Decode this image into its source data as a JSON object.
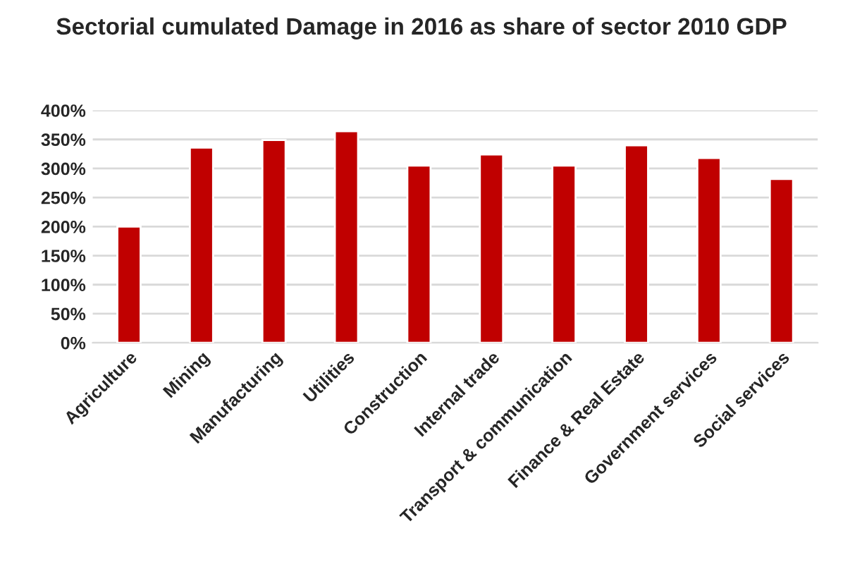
{
  "chart_data": {
    "type": "bar",
    "title": "Sectorial cumulated Damage in 2016 as share of sector 2010 GDP",
    "categories": [
      "Agriculture",
      "Mining",
      "Manufacturing",
      "Utilities",
      "Construction",
      "Internal trade",
      "Transport & communication",
      "Finance & Real Estate",
      "Government services",
      "Social services"
    ],
    "values": [
      200,
      336,
      349,
      364,
      305,
      324,
      305,
      340,
      318,
      282
    ],
    "color": "#c00000",
    "ylim": [
      0,
      400
    ],
    "yticks": [
      {
        "value": 0,
        "label": "0%"
      },
      {
        "value": 50,
        "label": "50%"
      },
      {
        "value": 100,
        "label": "100%"
      },
      {
        "value": 150,
        "label": "150%"
      },
      {
        "value": 200,
        "label": "200%"
      },
      {
        "value": 250,
        "label": "250%"
      },
      {
        "value": 300,
        "label": "300%"
      },
      {
        "value": 350,
        "label": "350%"
      },
      {
        "value": 400,
        "label": "400%"
      }
    ],
    "grid": "y"
  }
}
